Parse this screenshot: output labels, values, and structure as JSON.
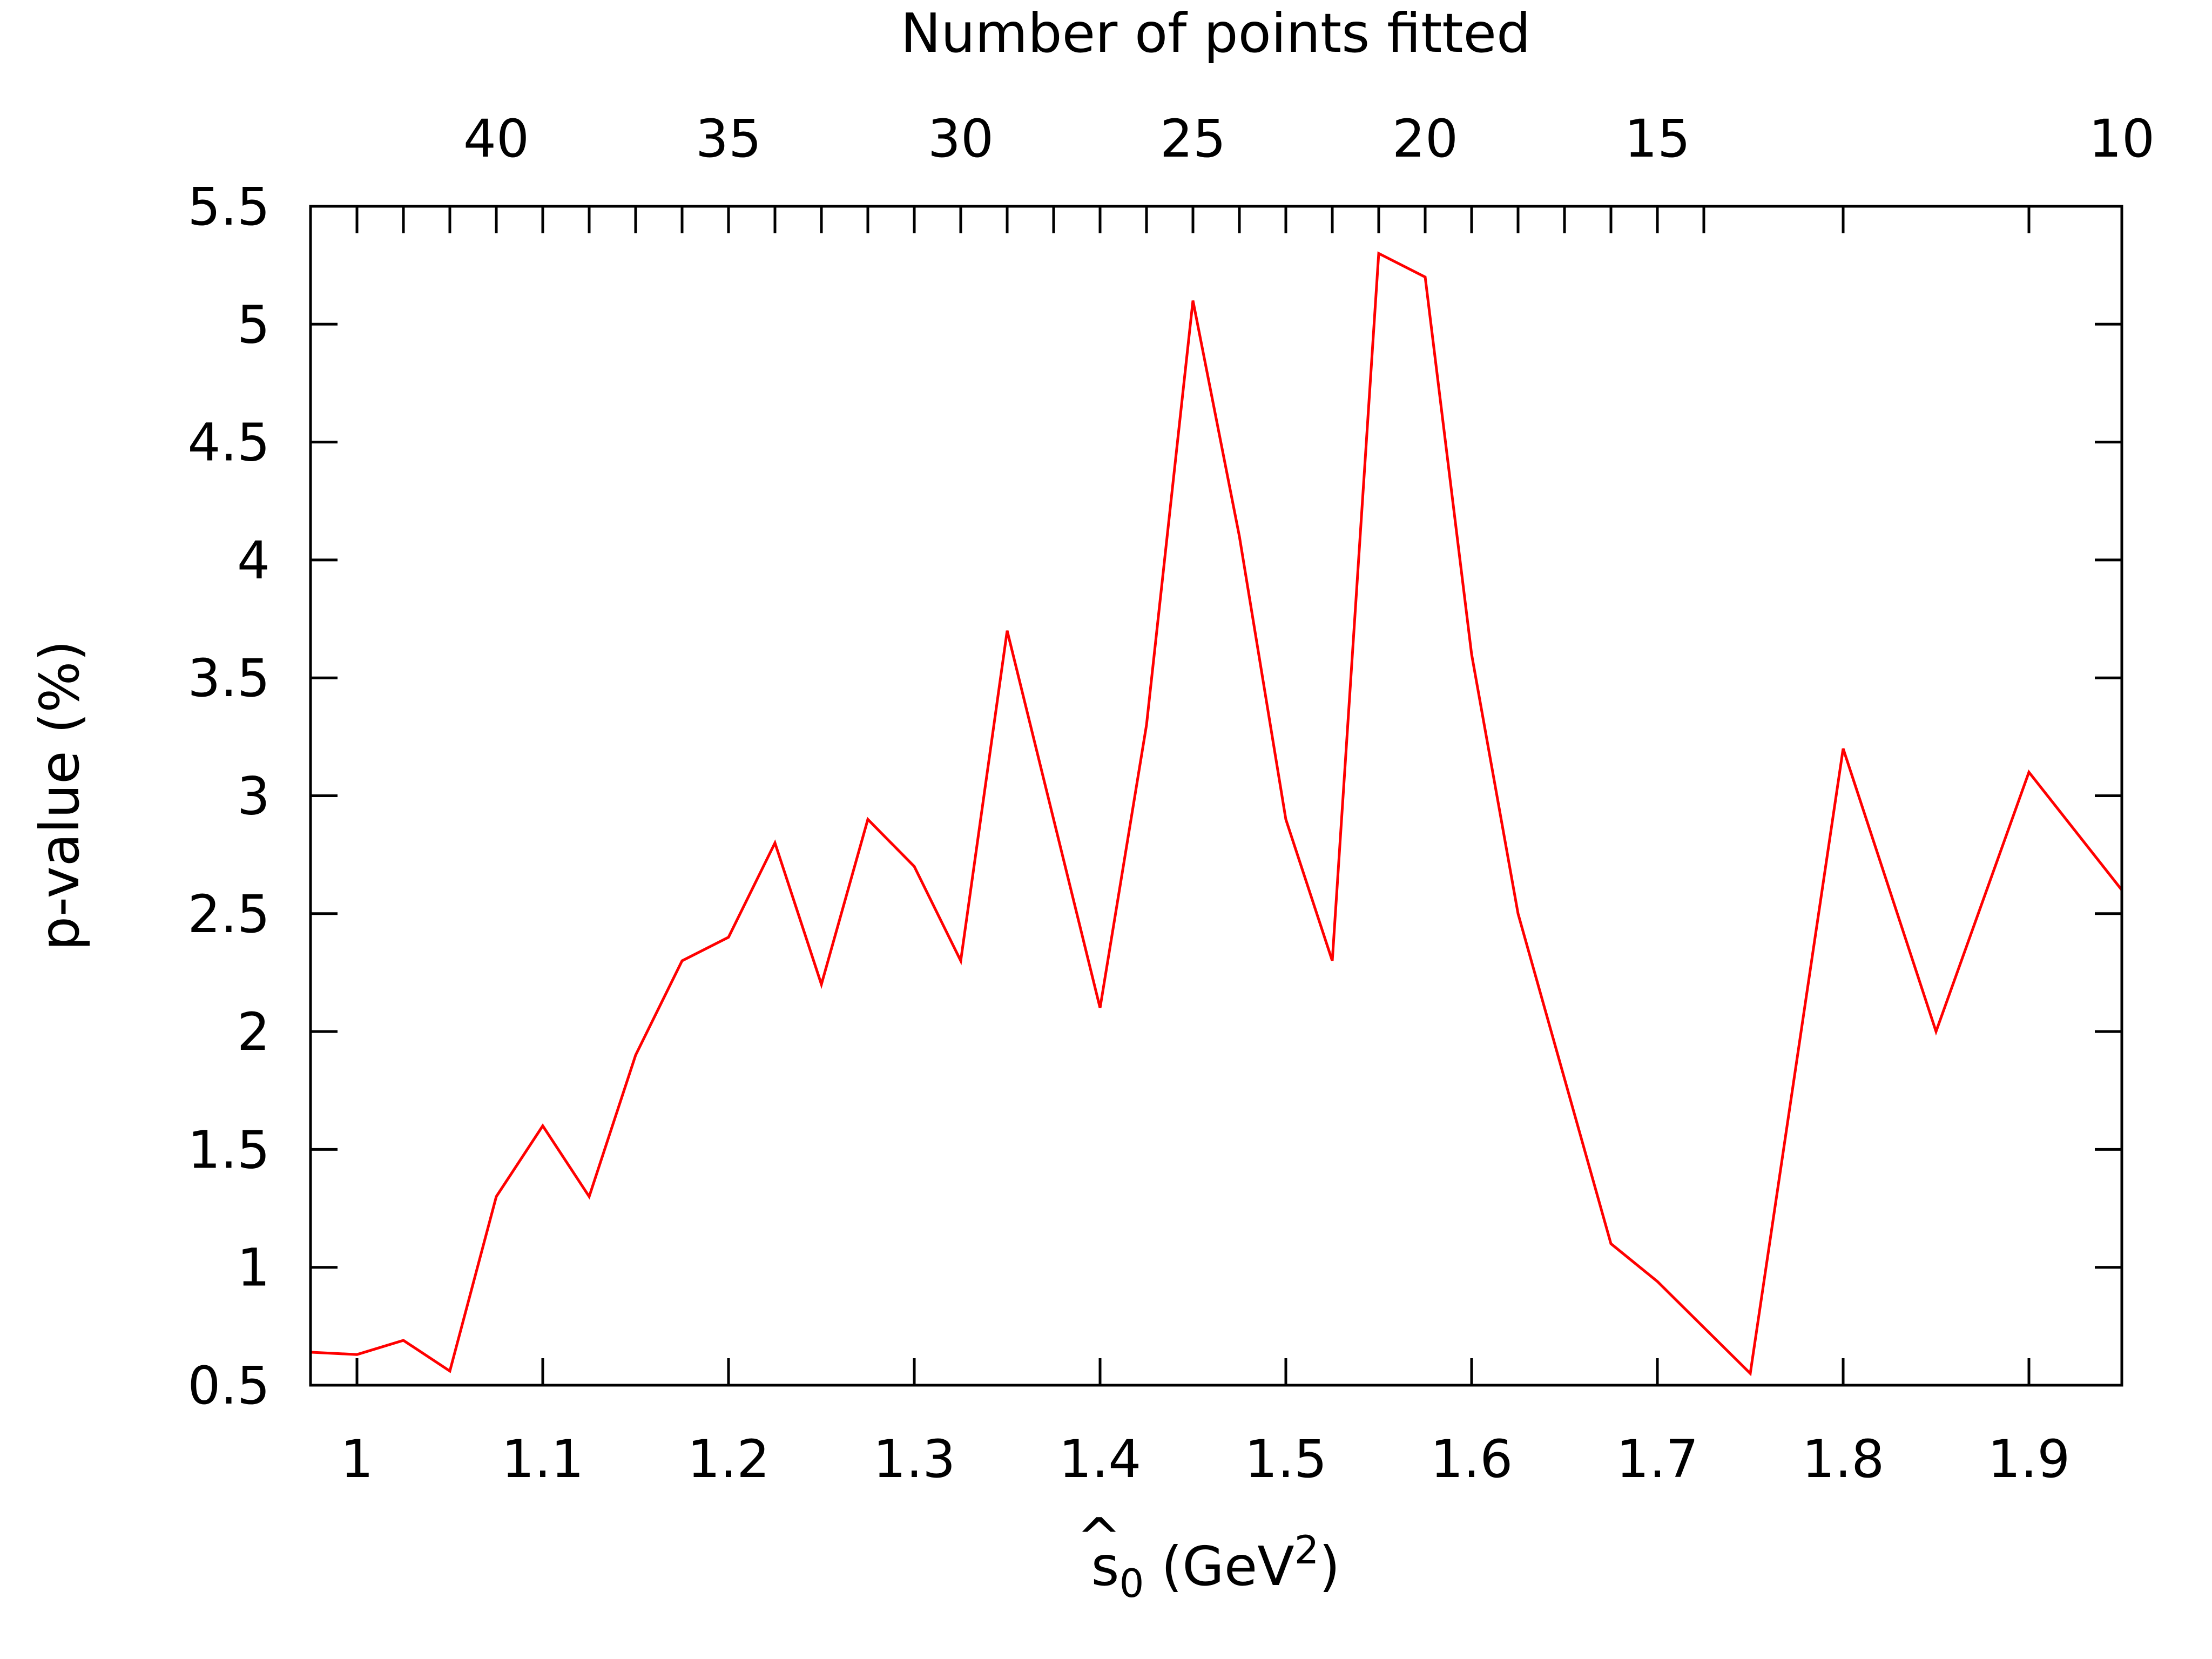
{
  "chart_data": {
    "type": "line",
    "xlabel": {
      "base": "s",
      "accent": "^",
      "subscript": "0",
      "mid": " (GeV",
      "superscript": "2",
      "tail": ")"
    },
    "ylabel": "p-value (%)",
    "x2label": "Number of points fitted",
    "xlim": [
      0.975,
      1.95
    ],
    "ylim": [
      0.5,
      5.5
    ],
    "x_ticks": [
      1,
      1.1,
      1.2,
      1.3,
      1.4,
      1.5,
      1.6,
      1.7,
      1.8,
      1.9
    ],
    "x_tick_labels": [
      "1",
      "1.1",
      "1.2",
      "1.3",
      "1.4",
      "1.5",
      "1.6",
      "1.7",
      "1.8",
      "1.9"
    ],
    "y_ticks": [
      0.5,
      1,
      1.5,
      2,
      2.5,
      3,
      3.5,
      4,
      4.5,
      5,
      5.5
    ],
    "y_tick_labels": [
      "0.5",
      "1",
      "1.5",
      "2",
      "2.5",
      "3",
      "3.5",
      "4",
      "4.5",
      "5",
      "5.5"
    ],
    "x2_tick_positions": [
      1.075,
      1.2,
      1.325,
      1.45,
      1.575,
      1.7,
      1.95
    ],
    "x2_tick_labels": [
      "40",
      "35",
      "30",
      "25",
      "20",
      "15",
      "10"
    ],
    "x2_minor_ticks": [
      1.0,
      1.025,
      1.05,
      1.1,
      1.125,
      1.15,
      1.175,
      1.225,
      1.25,
      1.275,
      1.3,
      1.35,
      1.375,
      1.4,
      1.425,
      1.475,
      1.5,
      1.525,
      1.55,
      1.6,
      1.625,
      1.65,
      1.675,
      1.725,
      1.8,
      1.9
    ],
    "grid": false,
    "series": [
      {
        "color": "#ff0000",
        "x": [
          0.975,
          1.0,
          1.025,
          1.05,
          1.075,
          1.1,
          1.125,
          1.15,
          1.175,
          1.2,
          1.225,
          1.25,
          1.275,
          1.3,
          1.325,
          1.35,
          1.4,
          1.425,
          1.45,
          1.475,
          1.5,
          1.525,
          1.55,
          1.575,
          1.6,
          1.625,
          1.675,
          1.7,
          1.75,
          1.8,
          1.85,
          1.9,
          1.95
        ],
        "y": [
          0.64,
          0.63,
          0.69,
          0.56,
          1.3,
          1.6,
          1.3,
          1.9,
          2.3,
          2.4,
          2.8,
          2.2,
          2.9,
          2.7,
          2.3,
          3.7,
          2.1,
          3.3,
          5.1,
          4.1,
          2.9,
          2.3,
          5.3,
          5.2,
          3.6,
          2.5,
          1.1,
          0.94,
          0.55,
          3.2,
          2.0,
          3.1,
          2.6
        ]
      }
    ]
  }
}
